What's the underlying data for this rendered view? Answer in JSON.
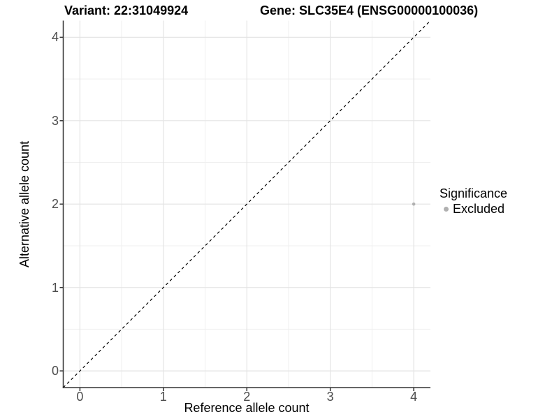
{
  "chart_data": {
    "type": "scatter",
    "title_left": "Variant: 22:31049924",
    "title_right": "Gene: SLC35E4 (ENSG00000100036)",
    "xlabel": "Reference allele count",
    "ylabel": "Alternative allele count",
    "xlim": [
      -0.2,
      4.2
    ],
    "ylim": [
      -0.2,
      4.2
    ],
    "x_ticks": [
      0,
      1,
      2,
      3,
      4
    ],
    "y_ticks": [
      0,
      1,
      2,
      3,
      4
    ],
    "x_minor_ticks": [
      0.5,
      1.5,
      2.5,
      3.5
    ],
    "y_minor_ticks": [
      0.5,
      1.5,
      2.5,
      3.5
    ],
    "grid": "major+minor",
    "legend": {
      "title": "Significance",
      "position": "right"
    },
    "series": [
      {
        "name": "Excluded",
        "color": "#b0b0b0",
        "marker": "circle",
        "points": [
          [
            4,
            2
          ]
        ]
      }
    ],
    "reference_line": {
      "type": "identity",
      "style": "dashed",
      "color": "#000000",
      "from": [
        -0.2,
        -0.2
      ],
      "to": [
        4.2,
        4.2
      ]
    }
  },
  "colors": {
    "background": "#ffffff",
    "grid_major": "#e4e4e4",
    "grid_minor": "#efefef",
    "axis_line": "#333333",
    "tick_label": "#4d4d4d",
    "point": "#b0b0b0"
  }
}
